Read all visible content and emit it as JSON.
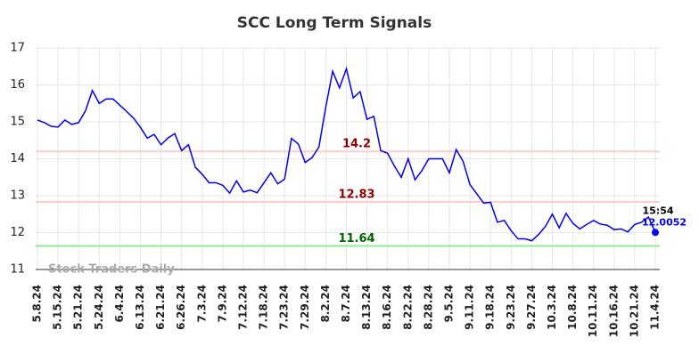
{
  "chart_data": {
    "type": "line",
    "title": "SCC Long Term Signals",
    "categories": [
      "5.8.24",
      null,
      null,
      "5.15.24",
      null,
      null,
      "5.21.24",
      null,
      null,
      "5.24.24",
      null,
      null,
      "6.4.24",
      null,
      null,
      "6.13.24",
      null,
      null,
      "6.21.24",
      null,
      null,
      "6.26.24",
      null,
      null,
      "7.3.24",
      null,
      null,
      "7.9.24",
      null,
      null,
      "7.12.24",
      null,
      null,
      "7.18.24",
      null,
      null,
      "7.23.24",
      null,
      null,
      "7.29.24",
      null,
      null,
      "8.2.24",
      null,
      null,
      "8.7.24",
      null,
      null,
      "8.13.24",
      null,
      null,
      "8.16.24",
      null,
      null,
      "8.22.24",
      null,
      null,
      "8.28.24",
      null,
      null,
      "9.5.24",
      null,
      null,
      "9.11.24",
      null,
      null,
      "9.18.24",
      null,
      null,
      "9.23.24",
      null,
      null,
      "9.27.24",
      null,
      null,
      "10.3.24",
      null,
      null,
      "10.8.24",
      null,
      null,
      "10.11.24",
      null,
      null,
      "10.16.24",
      null,
      null,
      "10.21.24",
      null,
      null,
      "11.4.24"
    ],
    "series": [
      {
        "name": "SCC",
        "color": "#0000ee",
        "values": [
          15.05,
          14.98,
          14.88,
          14.86,
          15.05,
          14.93,
          14.98,
          15.3,
          15.85,
          15.5,
          15.62,
          15.62,
          15.45,
          15.28,
          15.1,
          14.85,
          14.56,
          14.66,
          14.38,
          14.56,
          14.68,
          14.22,
          14.38,
          13.77,
          13.58,
          13.35,
          13.35,
          13.28,
          13.07,
          13.4,
          13.1,
          13.15,
          13.08,
          13.35,
          13.62,
          13.32,
          13.45,
          14.55,
          14.4,
          13.9,
          14.03,
          14.32,
          15.4,
          16.37,
          15.92,
          16.44,
          15.65,
          15.82,
          15.07,
          15.15,
          14.22,
          14.15,
          13.8,
          13.5,
          14.0,
          13.43,
          13.68,
          14.0,
          14.0,
          14.0,
          13.62,
          14.25,
          13.93,
          13.3,
          13.05,
          12.8,
          12.82,
          12.28,
          12.33,
          12.05,
          11.83,
          11.83,
          11.78,
          11.95,
          12.17,
          12.5,
          12.13,
          12.52,
          12.25,
          12.1,
          12.22,
          12.33,
          12.23,
          12.2,
          12.08,
          12.1,
          12.02,
          12.22,
          12.28,
          12.42,
          12.0052
        ]
      }
    ],
    "ylim": [
      11,
      17
    ],
    "yticks": [
      11,
      12,
      13,
      14,
      15,
      16,
      17
    ],
    "grid": true,
    "hlines": [
      {
        "value": 14.2,
        "color": "#ffcccc",
        "text_color": "#8b0000"
      },
      {
        "value": 12.83,
        "color": "#ffcccc",
        "text_color": "#8b0000"
      },
      {
        "value": 11.64,
        "color": "#90ee90",
        "text_color": "#006400"
      }
    ],
    "last_time": "15:54",
    "watermark": "Stock Traders Daily"
  }
}
